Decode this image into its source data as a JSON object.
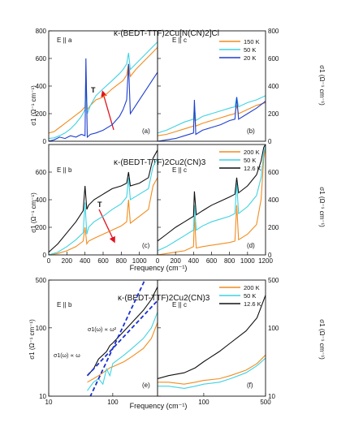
{
  "figure": {
    "colors": {
      "orange": "#f28c1e",
      "cyan": "#3fd3e2",
      "blue": "#1f3fcf",
      "black": "#111111",
      "red": "#e0141e",
      "dash": "#1a2fd0"
    }
  },
  "chart_data": [
    {
      "id": "a",
      "type": "line",
      "panel_label": "(a)",
      "title": "κ-(BEDT-TTF)2Cu[N(CN)2]Cl",
      "polarization": "E || a",
      "ylabel": "σ1 (Ω⁻¹ cm⁻¹)",
      "ylim": [
        0,
        800
      ],
      "xlim": [
        0,
        1200
      ],
      "xscale": "linear",
      "yticks": [
        "0",
        "200",
        "400",
        "600",
        "800"
      ],
      "annotation": "T",
      "legend": [
        "150 K",
        "50 K",
        "20 K"
      ],
      "series": [
        {
          "name": "150 K",
          "color": "orange",
          "x": [
            0,
            60,
            120,
            180,
            240,
            300,
            360,
            400,
            410,
            425,
            460,
            520,
            600,
            700,
            780,
            820,
            860,
            880,
            900,
            960,
            1020,
            1080,
            1140,
            1200
          ],
          "y": [
            60,
            70,
            100,
            130,
            160,
            190,
            220,
            250,
            400,
            230,
            260,
            300,
            320,
            380,
            420,
            440,
            480,
            560,
            470,
            520,
            560,
            600,
            640,
            680
          ]
        },
        {
          "name": "50 K",
          "color": "cyan",
          "x": [
            0,
            60,
            120,
            180,
            240,
            300,
            360,
            400,
            410,
            425,
            460,
            520,
            600,
            700,
            780,
            820,
            860,
            880,
            900,
            960,
            1020,
            1080,
            1140,
            1200
          ],
          "y": [
            20,
            25,
            40,
            60,
            90,
            130,
            180,
            230,
            500,
            200,
            260,
            330,
            380,
            440,
            490,
            520,
            560,
            640,
            520,
            560,
            600,
            640,
            680,
            720
          ]
        },
        {
          "name": "20 K",
          "color": "blue",
          "x": [
            0,
            60,
            120,
            180,
            240,
            300,
            360,
            400,
            410,
            425,
            460,
            520,
            600,
            700,
            780,
            820,
            860,
            880,
            900,
            960,
            1020,
            1080,
            1140,
            1200
          ],
          "y": [
            0,
            10,
            30,
            20,
            40,
            30,
            50,
            40,
            600,
            30,
            50,
            60,
            80,
            120,
            180,
            230,
            300,
            560,
            200,
            260,
            320,
            380,
            440,
            500
          ]
        }
      ]
    },
    {
      "id": "b",
      "type": "line",
      "panel_label": "(b)",
      "polarization": "E || c",
      "ylabel": "σ1 (Ω⁻¹ cm⁻¹)",
      "ylim": [
        0,
        800
      ],
      "xlim": [
        0,
        1200
      ],
      "xscale": "linear",
      "yticks": [
        "0",
        "200",
        "400",
        "600",
        "800"
      ],
      "series": [
        {
          "name": "150 K",
          "color": "orange",
          "x": [
            0,
            100,
            200,
            300,
            400,
            410,
            425,
            500,
            600,
            700,
            800,
            860,
            880,
            900,
            1000,
            1100,
            1200
          ],
          "y": [
            40,
            50,
            70,
            90,
            110,
            200,
            110,
            130,
            150,
            170,
            190,
            200,
            260,
            200,
            230,
            260,
            280
          ]
        },
        {
          "name": "50 K",
          "color": "cyan",
          "x": [
            0,
            100,
            200,
            300,
            400,
            410,
            425,
            500,
            600,
            700,
            800,
            860,
            880,
            900,
            1000,
            1100,
            1200
          ],
          "y": [
            60,
            80,
            110,
            140,
            160,
            260,
            150,
            180,
            200,
            220,
            240,
            250,
            320,
            250,
            280,
            300,
            330
          ]
        },
        {
          "name": "20 K",
          "color": "blue",
          "x": [
            0,
            100,
            200,
            300,
            400,
            410,
            425,
            500,
            600,
            700,
            800,
            860,
            880,
            900,
            1000,
            1100,
            1200
          ],
          "y": [
            0,
            10,
            20,
            40,
            60,
            300,
            50,
            80,
            100,
            120,
            150,
            160,
            320,
            160,
            200,
            240,
            290
          ]
        }
      ]
    },
    {
      "id": "c",
      "type": "line",
      "panel_label": "(c)",
      "title": "κ-(BEDT-TTF)2Cu2(CN)3",
      "polarization": "E || b",
      "ylabel": "σ1 (Ω⁻¹ cm⁻¹)",
      "xlabel": "Frequency (cm⁻¹)",
      "ylim": [
        0,
        800
      ],
      "xlim": [
        0,
        1200
      ],
      "xscale": "linear",
      "yticks": [
        "0",
        "200",
        "400",
        "600"
      ],
      "xticks": [
        "0",
        "200",
        "400",
        "600",
        "800",
        "1000"
      ],
      "annotation": "T",
      "legend": [
        "200 K",
        "50 K",
        "12.6 K"
      ],
      "series": [
        {
          "name": "200 K",
          "color": "orange",
          "x": [
            0,
            100,
            200,
            300,
            380,
            400,
            420,
            440,
            500,
            600,
            700,
            800,
            860,
            880,
            900,
            1000,
            1100,
            1150,
            1200
          ],
          "y": [
            0,
            10,
            30,
            60,
            100,
            200,
            80,
            100,
            120,
            150,
            180,
            210,
            240,
            400,
            230,
            280,
            330,
            500,
            560
          ]
        },
        {
          "name": "50 K",
          "color": "cyan",
          "x": [
            0,
            100,
            200,
            300,
            380,
            400,
            420,
            440,
            500,
            600,
            700,
            800,
            860,
            880,
            900,
            1000,
            1100,
            1150,
            1200
          ],
          "y": [
            0,
            20,
            60,
            110,
            160,
            380,
            150,
            200,
            240,
            280,
            330,
            370,
            420,
            560,
            400,
            440,
            480,
            640,
            700
          ]
        },
        {
          "name": "12.6 K",
          "color": "black",
          "x": [
            0,
            100,
            200,
            300,
            380,
            400,
            420,
            440,
            500,
            600,
            700,
            800,
            860,
            880,
            900,
            1000,
            1100,
            1150,
            1200
          ],
          "y": [
            20,
            80,
            160,
            240,
            320,
            500,
            330,
            360,
            400,
            440,
            480,
            500,
            520,
            600,
            500,
            520,
            560,
            700,
            760
          ]
        }
      ]
    },
    {
      "id": "d",
      "type": "line",
      "panel_label": "(d)",
      "polarization": "E || c",
      "ylabel": "σ1 (Ω⁻¹ cm⁻¹)",
      "xlabel": "Frequency (cm⁻¹)",
      "ylim": [
        0,
        800
      ],
      "xlim": [
        0,
        1200
      ],
      "xscale": "linear",
      "yticks": [
        "0",
        "200",
        "400",
        "600"
      ],
      "xticks": [
        "0",
        "200",
        "400",
        "600",
        "800",
        "1000",
        "1200"
      ],
      "series": [
        {
          "name": "200 K",
          "color": "orange",
          "x": [
            0,
            100,
            200,
            300,
            400,
            410,
            430,
            500,
            600,
            700,
            800,
            860,
            880,
            900,
            1000,
            1100,
            1150,
            1180,
            1200
          ],
          "y": [
            0,
            10,
            20,
            30,
            60,
            280,
            50,
            60,
            70,
            80,
            90,
            100,
            360,
            110,
            150,
            220,
            400,
            700,
            780
          ]
        },
        {
          "name": "50 K",
          "color": "cyan",
          "x": [
            0,
            100,
            200,
            300,
            400,
            410,
            430,
            500,
            600,
            700,
            800,
            860,
            880,
            900,
            1000,
            1100,
            1150,
            1180,
            1200
          ],
          "y": [
            30,
            60,
            100,
            140,
            180,
            360,
            180,
            210,
            240,
            260,
            280,
            300,
            520,
            300,
            350,
            430,
            560,
            740,
            790
          ]
        },
        {
          "name": "12.6 K",
          "color": "black",
          "x": [
            0,
            100,
            200,
            300,
            400,
            410,
            430,
            500,
            600,
            700,
            800,
            860,
            880,
            900,
            1000,
            1100,
            1150,
            1180,
            1200
          ],
          "y": [
            100,
            150,
            200,
            240,
            280,
            460,
            290,
            320,
            360,
            390,
            420,
            440,
            560,
            450,
            500,
            580,
            680,
            780,
            800
          ]
        }
      ]
    },
    {
      "id": "e",
      "type": "line",
      "panel_label": "(e)",
      "title": "κ-(BEDT-TTF)2Cu2(CN)3",
      "polarization": "E || b",
      "ylabel": "σ1 (Ω⁻¹ cm⁻¹)",
      "xlabel": "Frequency (cm⁻¹)",
      "ylim": [
        10,
        500
      ],
      "xlim": [
        10,
        500
      ],
      "xscale": "log",
      "yscale": "log",
      "yticks": [
        "10",
        "100",
        "500"
      ],
      "xticks": [
        "10",
        "100"
      ],
      "annotations": [
        "σ1(ω) ∝ ω²",
        "σ1(ω) ∝ ω"
      ],
      "legend": [
        "200 K",
        "50 K",
        "12.6 K"
      ],
      "series": [
        {
          "name": "200 K",
          "color": "orange",
          "x": [
            40,
            50,
            60,
            70,
            80,
            90,
            100,
            150,
            200,
            300,
            400,
            500
          ],
          "y": [
            16,
            18,
            20,
            22,
            24,
            26,
            27,
            32,
            38,
            50,
            70,
            120
          ]
        },
        {
          "name": "50 K",
          "color": "cyan",
          "x": [
            40,
            50,
            60,
            70,
            80,
            90,
            100,
            150,
            200,
            300,
            400,
            500
          ],
          "y": [
            12,
            16,
            18,
            15,
            25,
            20,
            30,
            40,
            50,
            70,
            100,
            170
          ]
        },
        {
          "name": "12.6 K",
          "color": "black",
          "x": [
            40,
            50,
            60,
            70,
            80,
            90,
            100,
            150,
            200,
            300,
            400,
            500
          ],
          "y": [
            20,
            25,
            35,
            40,
            45,
            55,
            60,
            90,
            120,
            180,
            260,
            400
          ]
        },
        {
          "name": "σ1(ω) ∝ ω²",
          "color": "dash",
          "x": [
            40,
            500
          ],
          "y": [
            8,
            1250
          ]
        },
        {
          "name": "σ1(ω) ∝ ω",
          "color": "dash",
          "x": [
            40,
            500
          ],
          "y": [
            20,
            250
          ]
        }
      ]
    },
    {
      "id": "f",
      "type": "line",
      "panel_label": "(f)",
      "polarization": "E || c",
      "ylabel": "σ1 (Ω⁻¹ cm⁻¹)",
      "xlabel": "Frequency (cm⁻¹)",
      "ylim": [
        10,
        500
      ],
      "xlim": [
        30,
        500
      ],
      "xscale": "log",
      "yscale": "log",
      "yticks": [
        "10",
        "100",
        "500"
      ],
      "xticks": [
        "100",
        "500"
      ],
      "series": [
        {
          "name": "200 K",
          "color": "orange",
          "x": [
            30,
            40,
            60,
            80,
            100,
            150,
            200,
            300,
            400,
            500
          ],
          "y": [
            16,
            16,
            15,
            16,
            17,
            18,
            20,
            24,
            30,
            40
          ]
        },
        {
          "name": "50 K",
          "color": "cyan",
          "x": [
            30,
            40,
            60,
            80,
            100,
            150,
            200,
            300,
            400,
            500
          ],
          "y": [
            14,
            14,
            13,
            14,
            15,
            16,
            18,
            22,
            28,
            36
          ]
        },
        {
          "name": "12.6 K",
          "color": "black",
          "x": [
            30,
            40,
            60,
            80,
            100,
            150,
            200,
            300,
            400,
            500
          ],
          "y": [
            18,
            20,
            22,
            26,
            32,
            45,
            60,
            90,
            140,
            300
          ]
        }
      ]
    }
  ]
}
